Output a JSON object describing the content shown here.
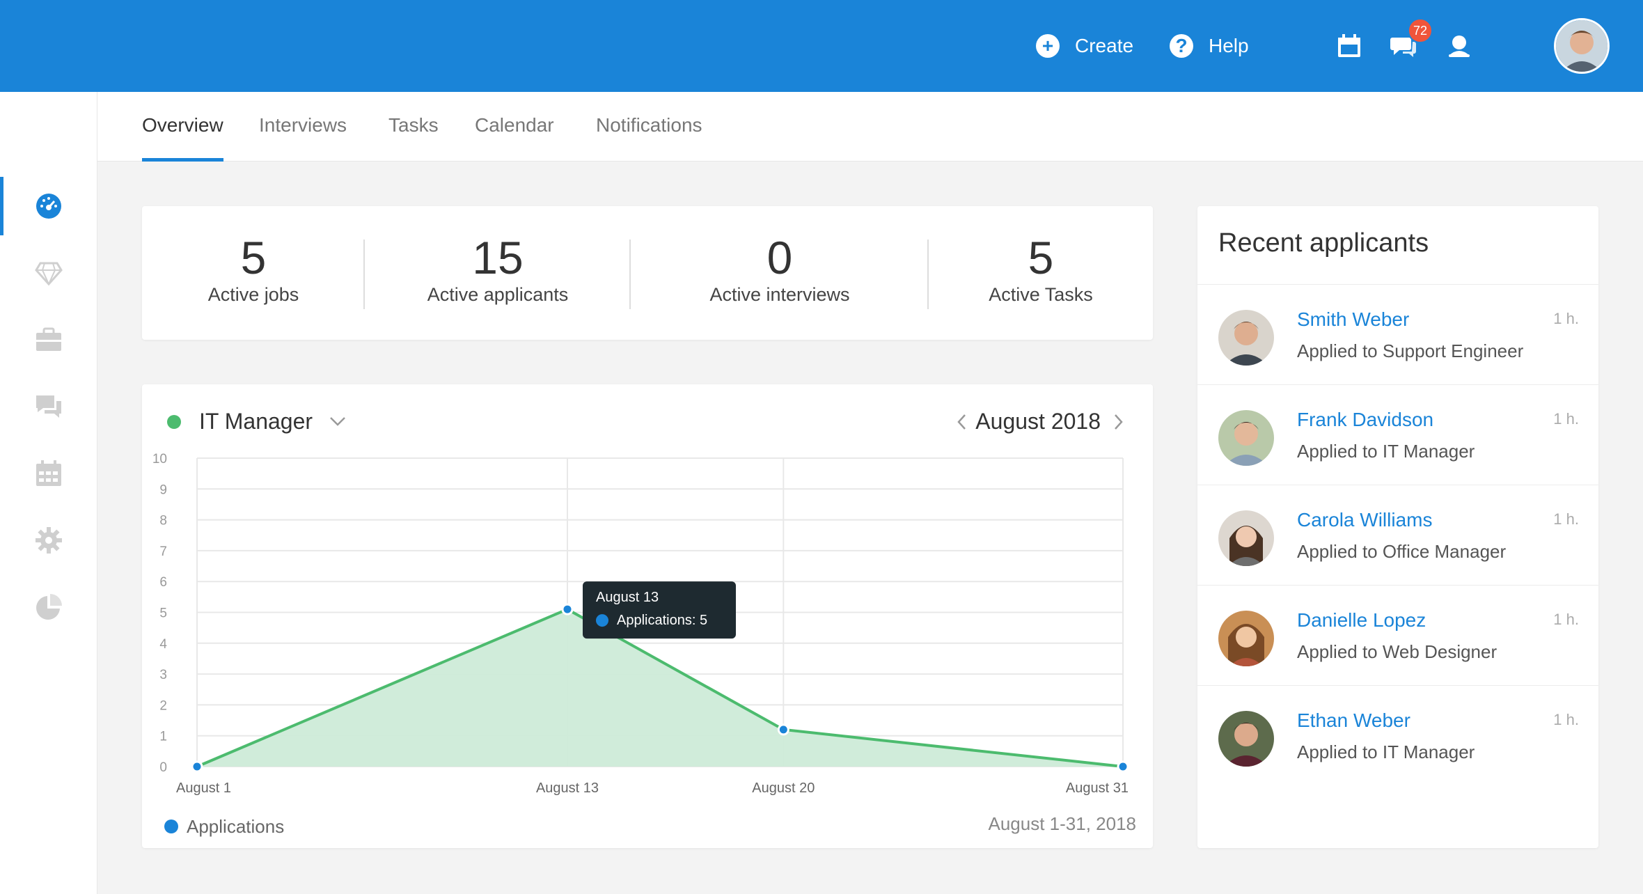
{
  "header": {
    "create_label": "Create",
    "help_label": "Help",
    "notifications_count": "72",
    "accent_color": "#1a84d8",
    "icons": [
      "plus-circle-icon",
      "help-circle-icon",
      "calendar-icon",
      "chat-icon",
      "user-icon"
    ]
  },
  "sidebar": {
    "items": [
      {
        "icon": "dashboard-icon",
        "active": true
      },
      {
        "icon": "diamond-icon",
        "active": false
      },
      {
        "icon": "briefcase-icon",
        "active": false
      },
      {
        "icon": "chat-bubbles-icon",
        "active": false
      },
      {
        "icon": "calendar-grid-icon",
        "active": false
      },
      {
        "icon": "settings-gear-icon",
        "active": false
      },
      {
        "icon": "pie-chart-icon",
        "active": false
      }
    ]
  },
  "tabs": [
    "Overview",
    "Interviews",
    "Tasks",
    "Calendar",
    "Notifications"
  ],
  "active_tab": "Overview",
  "stats": [
    {
      "value": "5",
      "label": "Active jobs"
    },
    {
      "value": "15",
      "label": "Active applicants"
    },
    {
      "value": "0",
      "label": "Active interviews"
    },
    {
      "value": "5",
      "label": "Active Tasks"
    }
  ],
  "chart_panel": {
    "job_title": "IT Manager",
    "status_color": "#4cbb6e",
    "month": "August 2018",
    "legend_label": "Applications",
    "date_range": "August 1-31, 2018",
    "tooltip": {
      "title": "August 13",
      "value": "Applications: 5"
    }
  },
  "chart_data": {
    "type": "area",
    "x": [
      "August 1",
      "August 13",
      "August 20",
      "August 31"
    ],
    "series": [
      {
        "name": "Applications",
        "values": [
          0,
          5.1,
          1.2,
          0
        ]
      }
    ],
    "ylim": [
      0,
      10
    ],
    "yticks": [
      0,
      1,
      2,
      3,
      4,
      5,
      6,
      7,
      8,
      9,
      10
    ],
    "grid": true,
    "colors": {
      "line": "#4cbb6e",
      "fill": "#cdebd8",
      "point": "#1a84d8"
    }
  },
  "recent": {
    "title": "Recent applicants",
    "items": [
      {
        "name": "Smith Weber",
        "sub": "Applied to Support Engineer",
        "time": "1 h."
      },
      {
        "name": "Frank Davidson",
        "sub": "Applied to IT Manager",
        "time": "1 h."
      },
      {
        "name": "Carola Williams",
        "sub": "Applied to Office Manager",
        "time": "1 h."
      },
      {
        "name": "Danielle Lopez",
        "sub": "Applied to Web Designer",
        "time": "1 h."
      },
      {
        "name": "Ethan Weber",
        "sub": "Applied to IT Manager",
        "time": "1 h."
      }
    ]
  }
}
